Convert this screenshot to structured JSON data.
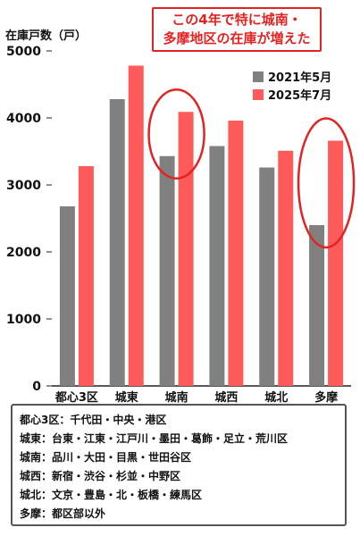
{
  "chart_data": {
    "type": "bar",
    "ylabel": "在庫戸数（戸）",
    "ylim": [
      0,
      5000
    ],
    "yticks": [
      "0",
      "1000",
      "2000",
      "3000",
      "4000",
      "5000"
    ],
    "categories": [
      "都心3区",
      "城東",
      "城南",
      "城西",
      "城北",
      "多摩"
    ],
    "series": [
      {
        "name": "2021年5月",
        "color": "#808080",
        "values": [
          2680,
          4280,
          3430,
          3580,
          3260,
          2400
        ]
      },
      {
        "name": "2025年7月",
        "color": "#ff5a5a",
        "values": [
          3280,
          4780,
          4090,
          3960,
          3510,
          3660
        ]
      }
    ],
    "legend_position": "top-right",
    "grid": false
  },
  "callout": {
    "lines": [
      "この4年で特に城南・",
      "多摩地区の在庫が増えた"
    ],
    "color": "#e32222",
    "highlighted_categories": [
      "城南",
      "多摩"
    ]
  },
  "note": {
    "lines": [
      "都心3区：千代田・中央・港区",
      "城東：台東・江東・江戸川・墨田・葛飾・足立・荒川区",
      "城南：品川・大田・目黒・世田谷区",
      "城西：新宿・渋谷・杉並・中野区",
      "城北：文京・豊島・北・板橋・練馬区",
      "多摩：都区部以外"
    ]
  }
}
